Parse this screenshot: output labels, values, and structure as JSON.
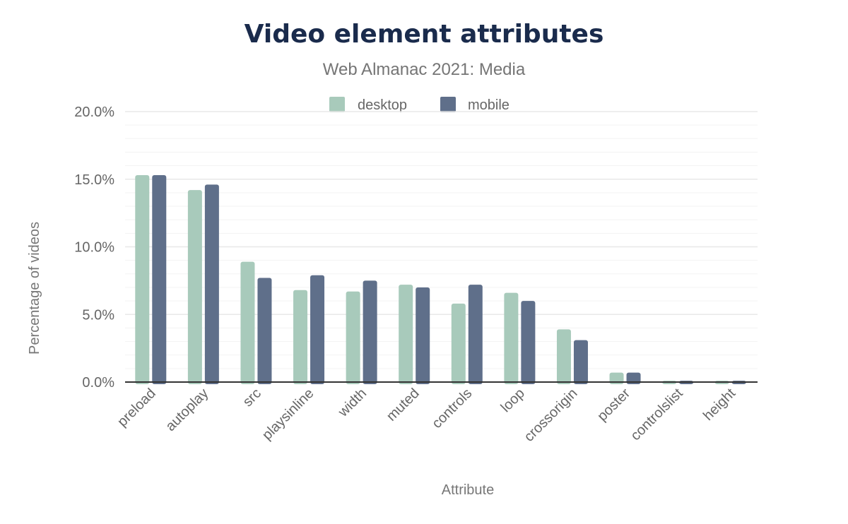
{
  "chart_data": {
    "type": "bar",
    "title": "Video element attributes",
    "subtitle": "Web Almanac 2021: Media",
    "xlabel": "Attribute",
    "ylabel": "Percentage of videos",
    "ylim": [
      0,
      20
    ],
    "yticks": [
      "0.0%",
      "5.0%",
      "10.0%",
      "15.0%",
      "20.0%"
    ],
    "grid": true,
    "legend_position": "top",
    "categories": [
      "preload",
      "autoplay",
      "src",
      "playsinline",
      "width",
      "muted",
      "controls",
      "loop",
      "crossorigin",
      "poster",
      "controlslist",
      "height"
    ],
    "series": [
      {
        "name": "desktop",
        "color": "#a8cabb",
        "values": [
          15.3,
          14.2,
          8.9,
          6.8,
          6.7,
          7.2,
          5.8,
          6.6,
          3.9,
          0.7,
          0.1,
          0.1
        ]
      },
      {
        "name": "mobile",
        "color": "#5f6f8a",
        "values": [
          15.3,
          14.6,
          7.7,
          7.9,
          7.5,
          7.0,
          7.2,
          6.0,
          3.1,
          0.7,
          0.1,
          0.1
        ]
      }
    ]
  }
}
